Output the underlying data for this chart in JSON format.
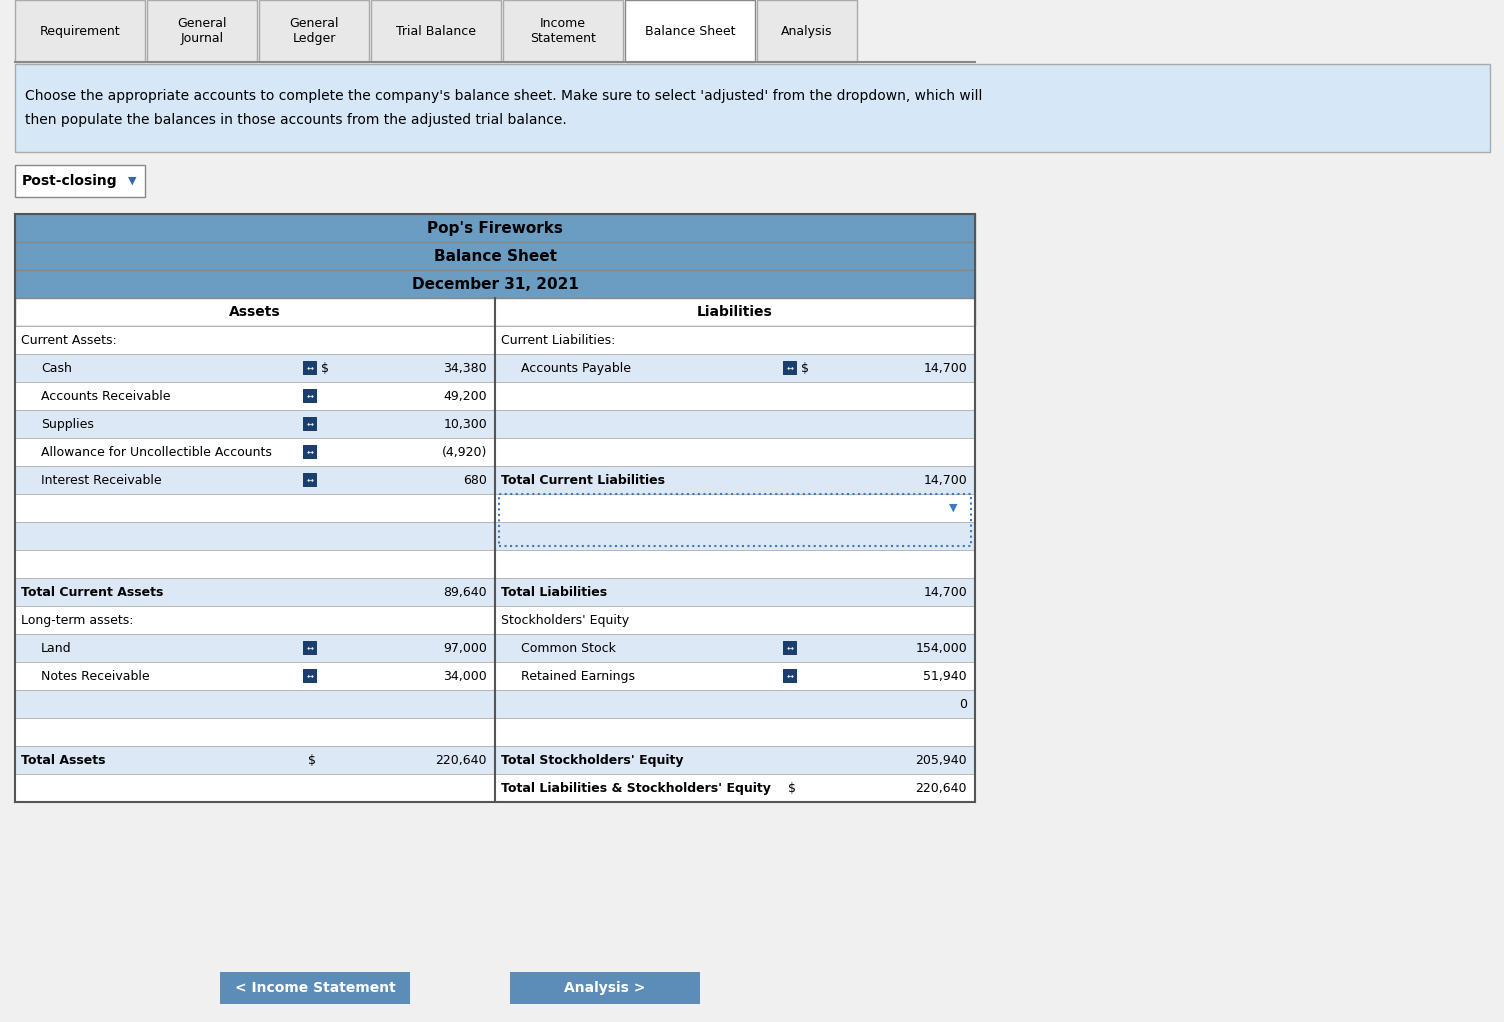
{
  "tab_labels": [
    "Requirement",
    "General\nJournal",
    "General\nLedger",
    "Trial Balance",
    "Income\nStatement",
    "Balance Sheet",
    "Analysis"
  ],
  "active_tab": 5,
  "instruction_line1": "Choose the appropriate accounts to complete the company's balance sheet. Make sure to select 'adjusted' from the dropdown, which will",
  "instruction_line2": "then populate the balances in those accounts from the adjusted trial balance.",
  "dropdown_label": "Post-closing",
  "company_name": "Pop's Fireworks",
  "report_title": "Balance Sheet",
  "report_date": "December 31, 2021",
  "header_bg": "#6b9dc2",
  "tab_bg": "#e8e8e8",
  "active_tab_bg": "#ffffff",
  "instruction_bg": "#d6e8f7",
  "assets_col_header": "Assets",
  "liabilities_col_header": "Liabilities",
  "assets_rows": [
    {
      "label": "Current Assets:",
      "indent": 0,
      "value": "",
      "is_header": true
    },
    {
      "label": "Cash",
      "indent": 1,
      "value": "34,380",
      "dollar": true,
      "has_arrow": true
    },
    {
      "label": "Accounts Receivable",
      "indent": 1,
      "value": "49,200",
      "has_arrow": true
    },
    {
      "label": "Supplies",
      "indent": 1,
      "value": "10,300",
      "has_arrow": true
    },
    {
      "label": "Allowance for Uncollectible Accounts",
      "indent": 1,
      "value": "(4,920)",
      "has_arrow": true
    },
    {
      "label": "Interest Receivable",
      "indent": 1,
      "value": "680",
      "has_arrow": true
    },
    {
      "label": "",
      "indent": 1,
      "value": "",
      "empty": true
    },
    {
      "label": "",
      "indent": 1,
      "value": "",
      "empty": true
    },
    {
      "label": "",
      "indent": 1,
      "value": "",
      "empty": true
    },
    {
      "label": "Total Current Assets",
      "indent": 0,
      "value": "89,640",
      "is_total": true
    },
    {
      "label": "Long-term assets:",
      "indent": 0,
      "value": "",
      "is_header": true
    },
    {
      "label": "Land",
      "indent": 1,
      "value": "97,000",
      "has_arrow": true
    },
    {
      "label": "Notes Receivable",
      "indent": 1,
      "value": "34,000",
      "has_arrow": true
    },
    {
      "label": "",
      "indent": 1,
      "value": "",
      "empty": true
    },
    {
      "label": "",
      "indent": 1,
      "value": "",
      "empty": true
    },
    {
      "label": "Total Assets",
      "indent": 0,
      "value": "220,640",
      "dollar": true,
      "is_grand_total": true
    }
  ],
  "liabilities_rows": [
    {
      "label": "Current Liabilities:",
      "indent": 0,
      "value": "",
      "is_header": true
    },
    {
      "label": "Accounts Payable",
      "indent": 1,
      "value": "14,700",
      "dollar": true,
      "has_arrow": true
    },
    {
      "label": "",
      "indent": 1,
      "value": "",
      "empty": true
    },
    {
      "label": "",
      "indent": 1,
      "value": "",
      "empty": true
    },
    {
      "label": "",
      "indent": 1,
      "value": "",
      "empty": true
    },
    {
      "label": "Total Current Liabilities",
      "indent": 0,
      "value": "14,700",
      "is_total": true,
      "dotted_below": true
    },
    {
      "label": "",
      "indent": 1,
      "value": "",
      "empty": true
    },
    {
      "label": "",
      "indent": 1,
      "value": "",
      "empty": true
    },
    {
      "label": "",
      "indent": 1,
      "value": "",
      "empty": true
    },
    {
      "label": "Total Liabilities",
      "indent": 0,
      "value": "14,700",
      "is_total": true
    },
    {
      "label": "Stockholders' Equity",
      "indent": 0,
      "value": "",
      "is_header": true
    },
    {
      "label": "Common Stock",
      "indent": 1,
      "value": "154,000",
      "has_arrow": true
    },
    {
      "label": "Retained Earnings",
      "indent": 1,
      "value": "51,940",
      "has_arrow": true
    },
    {
      "label": "",
      "indent": 1,
      "value": "0",
      "empty": false,
      "value_only": true
    },
    {
      "label": "",
      "indent": 1,
      "value": "",
      "empty": true
    },
    {
      "label": "Total Stockholders' Equity",
      "indent": 0,
      "value": "205,940",
      "is_total": true
    },
    {
      "label": "Total Liabilities & Stockholders' Equity",
      "indent": 0,
      "value": "220,640",
      "dollar": true,
      "is_grand_total": true
    }
  ],
  "button1_label": "< Income Statement",
  "button2_label": "Analysis >",
  "button_bg": "#5b8db8",
  "button_text_color": "#ffffff"
}
